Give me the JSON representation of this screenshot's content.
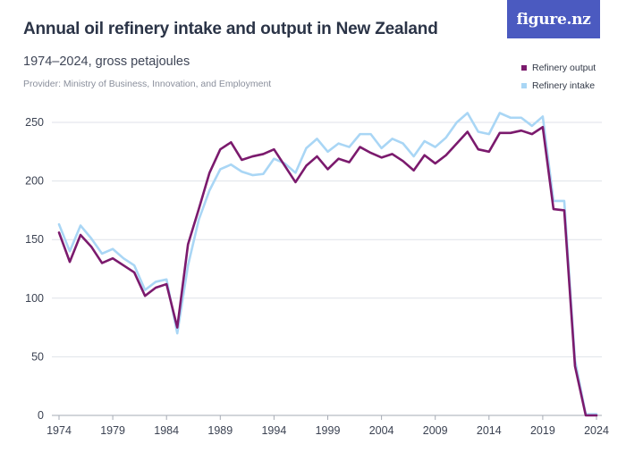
{
  "header": {
    "title": "Annual oil refinery intake and output in New Zealand",
    "subtitle": "1974–2024, gross petajoules",
    "provider": "Provider: Ministry of Business, Innovation, and Employment"
  },
  "logo": {
    "text": "figure.nz",
    "color": "#4b5ac0"
  },
  "chart_data": {
    "type": "line",
    "title": "Annual oil refinery intake and output in New Zealand",
    "subtitle": "1974–2024, gross petajoules",
    "xlabel": "",
    "ylabel": "",
    "xlim": [
      1974,
      2024
    ],
    "ylim": [
      0,
      250
    ],
    "x_ticks": [
      1974,
      1979,
      1984,
      1989,
      1994,
      1999,
      2004,
      2009,
      2014,
      2019,
      2024
    ],
    "y_ticks": [
      0,
      50,
      100,
      150,
      200,
      250
    ],
    "grid": "horizontal",
    "legend_position": "top-right",
    "x": [
      1974,
      1975,
      1976,
      1977,
      1978,
      1979,
      1980,
      1981,
      1982,
      1983,
      1984,
      1985,
      1986,
      1987,
      1988,
      1989,
      1990,
      1991,
      1992,
      1993,
      1994,
      1995,
      1996,
      1997,
      1998,
      1999,
      2000,
      2001,
      2002,
      2003,
      2004,
      2005,
      2006,
      2007,
      2008,
      2009,
      2010,
      2011,
      2012,
      2013,
      2014,
      2015,
      2016,
      2017,
      2018,
      2019,
      2020,
      2021,
      2022,
      2023,
      2024
    ],
    "series": [
      {
        "name": "Refinery output",
        "color": "#7b1a6d",
        "values": [
          156,
          131,
          154,
          144,
          130,
          134,
          128,
          122,
          102,
          109,
          112,
          75,
          146,
          176,
          207,
          227,
          233,
          218,
          221,
          223,
          227,
          213,
          199,
          213,
          221,
          210,
          219,
          216,
          229,
          224,
          220,
          223,
          217,
          209,
          222,
          215,
          222,
          232,
          242,
          227,
          225,
          241,
          241,
          243,
          240,
          246,
          176,
          175,
          42,
          0,
          0
        ]
      },
      {
        "name": "Refinery intake",
        "color": "#a9d6f5",
        "values": [
          163,
          140,
          162,
          151,
          138,
          142,
          134,
          128,
          107,
          114,
          116,
          70,
          128,
          167,
          192,
          210,
          214,
          208,
          205,
          206,
          219,
          215,
          207,
          228,
          236,
          225,
          232,
          229,
          240,
          240,
          228,
          236,
          232,
          221,
          234,
          229,
          237,
          250,
          258,
          242,
          240,
          258,
          254,
          254,
          247,
          255,
          183,
          183,
          47,
          1,
          1
        ]
      }
    ]
  }
}
